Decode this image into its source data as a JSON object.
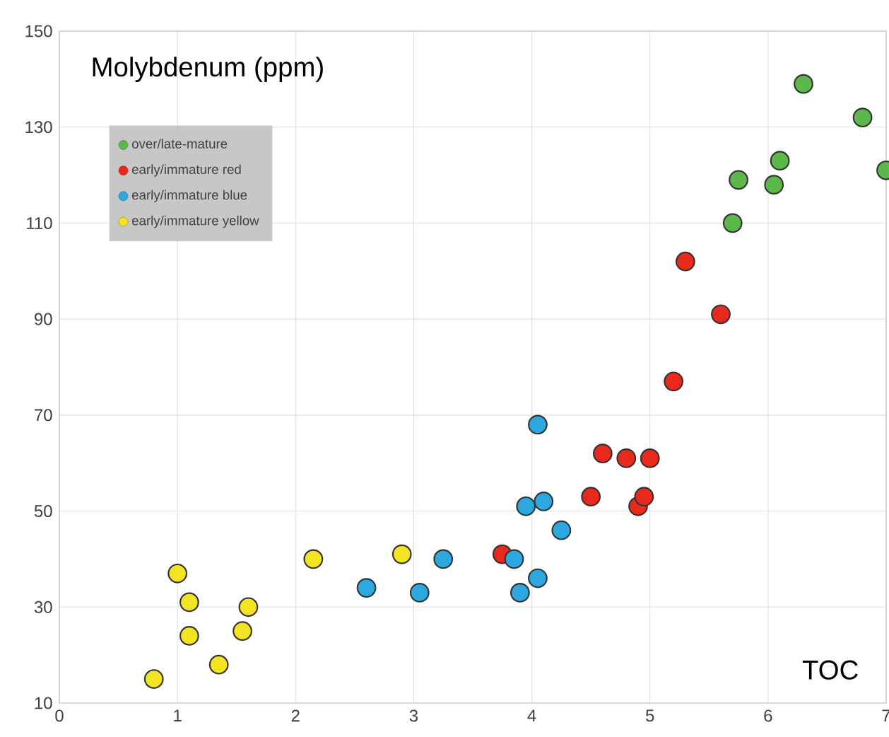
{
  "chart_data": {
    "type": "scatter",
    "title": "Molybdenum (ppm)",
    "xlabel": "TOC",
    "xlim": [
      0,
      7
    ],
    "xticks": [
      0,
      1,
      2,
      3,
      4,
      5,
      6,
      7
    ],
    "ylim": [
      10,
      150
    ],
    "yticks": [
      10,
      30,
      50,
      70,
      90,
      110,
      130,
      150
    ],
    "grid": true,
    "legend": "top left",
    "marker": "circle",
    "series": [
      {
        "name": "over/late-mature",
        "color": "#5cb84a",
        "x": [
          5.7,
          5.75,
          6.05,
          6.1,
          6.3,
          6.8,
          7.0
        ],
        "values": [
          110,
          119,
          118,
          123,
          139,
          132,
          121
        ]
      },
      {
        "name": "early/immature red",
        "color": "#e8291c",
        "x": [
          3.75,
          4.5,
          4.6,
          4.8,
          5.0,
          4.9,
          4.95,
          5.2,
          5.3,
          5.6
        ],
        "values": [
          41,
          53,
          62,
          61,
          61,
          51,
          53,
          77,
          102,
          91
        ]
      },
      {
        "name": "early/immature blue",
        "color": "#2ba8e0",
        "x": [
          2.6,
          3.05,
          3.25,
          3.9,
          4.05,
          3.85,
          3.95,
          4.1,
          4.05,
          4.25
        ],
        "values": [
          34,
          33,
          40,
          33,
          36,
          40,
          51,
          52,
          68,
          46
        ]
      },
      {
        "name": "early/immature yellow",
        "color": "#f2e422",
        "x": [
          0.8,
          1.0,
          1.1,
          1.1,
          1.35,
          1.55,
          1.6,
          2.15,
          2.9
        ],
        "values": [
          15,
          37,
          31,
          24,
          18,
          25,
          30,
          40,
          41
        ]
      }
    ]
  }
}
